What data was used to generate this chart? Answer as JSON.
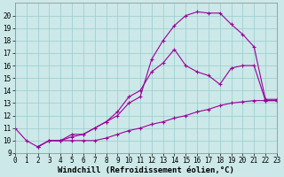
{
  "xlabel": "Windchill (Refroidissement éolien,°C)",
  "background_color": "#cce8e8",
  "line_color": "#990099",
  "xlim": [
    0,
    23
  ],
  "ylim": [
    9,
    21
  ],
  "xticks": [
    0,
    1,
    2,
    3,
    4,
    5,
    6,
    7,
    8,
    9,
    10,
    11,
    12,
    13,
    14,
    15,
    16,
    17,
    18,
    19,
    20,
    21,
    22,
    23
  ],
  "yticks": [
    9,
    10,
    11,
    12,
    13,
    14,
    15,
    16,
    17,
    18,
    19,
    20
  ],
  "line1_x": [
    0,
    1,
    2,
    3,
    4,
    5,
    6,
    7,
    8,
    9,
    10,
    11,
    12,
    13,
    14,
    15,
    16,
    17,
    18,
    19,
    20,
    21,
    22,
    23
  ],
  "line1_y": [
    11.0,
    10.0,
    9.5,
    10.0,
    10.0,
    10.5,
    10.5,
    11.0,
    11.5,
    12.0,
    13.0,
    13.5,
    16.5,
    18.0,
    19.2,
    20.0,
    20.3,
    20.2,
    20.2,
    19.3,
    18.5,
    17.5,
    13.3,
    13.3
  ],
  "line2_x": [
    2,
    3,
    4,
    5,
    6,
    7,
    8,
    9,
    10,
    11,
    12,
    13,
    14,
    15,
    16,
    17,
    18,
    19,
    20,
    21,
    22,
    23
  ],
  "line2_y": [
    9.5,
    10.0,
    10.0,
    10.3,
    10.5,
    11.0,
    11.5,
    12.3,
    13.5,
    14.0,
    15.5,
    16.2,
    17.3,
    16.0,
    15.5,
    15.2,
    14.5,
    15.8,
    16.0,
    16.0,
    13.2,
    13.2
  ],
  "line3_x": [
    2,
    3,
    4,
    5,
    6,
    7,
    8,
    9,
    10,
    11,
    12,
    13,
    14,
    15,
    16,
    17,
    18,
    19,
    20,
    21,
    22,
    23
  ],
  "line3_y": [
    9.5,
    10.0,
    10.0,
    10.0,
    10.0,
    10.0,
    10.2,
    10.5,
    10.8,
    11.0,
    11.3,
    11.5,
    11.8,
    12.0,
    12.3,
    12.5,
    12.8,
    13.0,
    13.1,
    13.2,
    13.2,
    13.2
  ],
  "grid_color": "#99cccc",
  "tick_fontsize": 5.5,
  "xlabel_fontsize": 6.5
}
